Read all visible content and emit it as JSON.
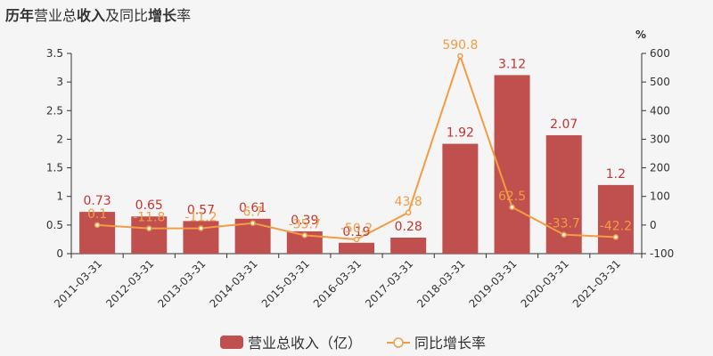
{
  "title": {
    "bold_a": "历年",
    "normal_a": "营业总",
    "bold_b": "收入",
    "normal_b": "及同比",
    "bold_c": "增长",
    "normal_c": "率"
  },
  "colors": {
    "bar": "#c0504d",
    "line": "#f39c44",
    "bar_label": "#c23531",
    "background": "#f5f5f5"
  },
  "chart_data": {
    "type": "bar",
    "categories": [
      "2011-03-31",
      "2012-03-31",
      "2013-03-31",
      "2014-03-31",
      "2015-03-31",
      "2016-03-31",
      "2017-03-31",
      "2018-03-31",
      "2019-03-31",
      "2020-03-31",
      "2021-03-31"
    ],
    "series": [
      {
        "name": "营业总收入（亿）",
        "type": "bar",
        "axis": "left",
        "values": [
          0.73,
          0.65,
          0.57,
          0.61,
          0.39,
          0.19,
          0.28,
          1.92,
          3.12,
          2.07,
          1.2
        ],
        "labels": [
          "0.73",
          "0.65",
          "0.57",
          "0.61",
          "0.39",
          "0.19",
          "0.28",
          "1.92",
          "3.12",
          "2.07",
          "1.2"
        ]
      },
      {
        "name": "同比增长率",
        "type": "line",
        "axis": "right",
        "values": [
          0.1,
          -11.8,
          -11.2,
          6.7,
          -35.7,
          -50.2,
          43.8,
          590.8,
          62.5,
          -33.7,
          -42.2
        ],
        "labels": [
          "0.1",
          "-11.8",
          "-11.2",
          "6.7",
          "-35.7",
          "-50.2",
          "43.8",
          "590.8",
          "62.5",
          "-33.7",
          "-42.2"
        ]
      }
    ],
    "y_left": {
      "min": 0,
      "max": 3.5,
      "ticks": [
        "0",
        "0.5",
        "1",
        "1.5",
        "2",
        "2.5",
        "3",
        "3.5"
      ]
    },
    "y_right": {
      "min": -100,
      "max": 600,
      "unit": "%",
      "ticks": [
        "-100",
        "0",
        "100",
        "200",
        "300",
        "400",
        "500",
        "600"
      ]
    },
    "grid": false,
    "legend_position": "bottom-center"
  }
}
